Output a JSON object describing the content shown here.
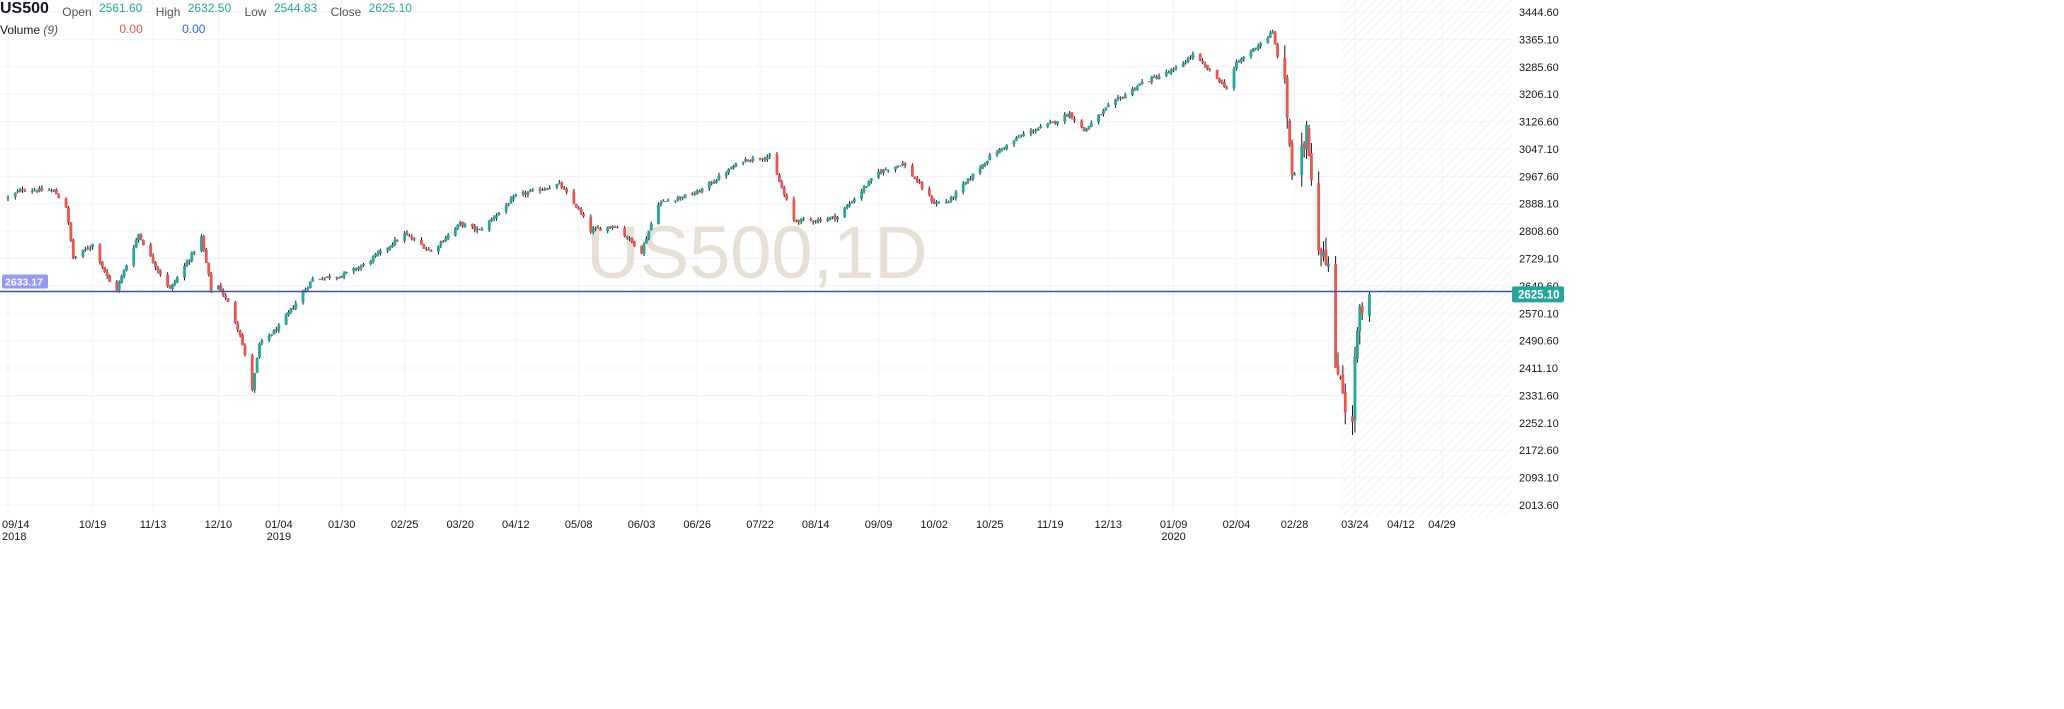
{
  "header": {
    "symbol": "US500",
    "open_label": "Open",
    "open_value": "2561.60",
    "high_label": "High",
    "high_value": "2632.50",
    "low_label": "Low",
    "low_value": "2544.83",
    "close_label": "Close",
    "close_value": "2625.10",
    "volume_label": "Volume",
    "volume_period": "(9)",
    "volume_value_1": "0.00",
    "volume_value_2": "0.00"
  },
  "watermark": "US500,1D",
  "crosshair_price": "2633.17",
  "last_price": "2625.10",
  "colors": {
    "up": "#26a69a",
    "down": "#ef5350",
    "crosshair": "#3f51b5",
    "last_price_badge": "#26a69a",
    "crosshair_badge": "#9598f5",
    "watermark": "#e6dfd4"
  },
  "chart_data": {
    "type": "candlestick",
    "ylim": [
      2013.6,
      3444.6
    ],
    "y_ticks": [
      "3444.60",
      "3365.10",
      "3285.60",
      "3206.10",
      "3126.60",
      "3047.10",
      "2967.60",
      "2888.10",
      "2808.60",
      "2729.10",
      "2649.60",
      "2570.10",
      "2490.60",
      "2411.10",
      "2331.60",
      "2252.10",
      "2172.60",
      "2093.10",
      "2013.60"
    ],
    "x_ticks": [
      {
        "label": "09/14",
        "sub": "2018"
      },
      {
        "label": "10/19",
        "sub": ""
      },
      {
        "label": "11/13",
        "sub": ""
      },
      {
        "label": "12/10",
        "sub": ""
      },
      {
        "label": "01/04",
        "sub": "2019"
      },
      {
        "label": "01/30",
        "sub": ""
      },
      {
        "label": "02/25",
        "sub": ""
      },
      {
        "label": "03/20",
        "sub": ""
      },
      {
        "label": "04/12",
        "sub": ""
      },
      {
        "label": "05/08",
        "sub": ""
      },
      {
        "label": "06/03",
        "sub": ""
      },
      {
        "label": "06/26",
        "sub": ""
      },
      {
        "label": "07/22",
        "sub": ""
      },
      {
        "label": "08/14",
        "sub": ""
      },
      {
        "label": "09/09",
        "sub": ""
      },
      {
        "label": "10/02",
        "sub": ""
      },
      {
        "label": "10/25",
        "sub": ""
      },
      {
        "label": "11/19",
        "sub": ""
      },
      {
        "label": "12/13",
        "sub": ""
      },
      {
        "label": "01/09",
        "sub": "2020"
      },
      {
        "label": "02/04",
        "sub": ""
      },
      {
        "label": "02/28",
        "sub": ""
      },
      {
        "label": "03/24",
        "sub": ""
      },
      {
        "label": "04/12",
        "sub": ""
      },
      {
        "label": "04/29",
        "sub": ""
      }
    ],
    "close_path": [
      [
        "09/14/2018",
        2905
      ],
      [
        "09/20/2018",
        2930
      ],
      [
        "10/03/2018",
        2925
      ],
      [
        "10/08/2018",
        2880
      ],
      [
        "10/11/2018",
        2730
      ],
      [
        "10/19/2018",
        2770
      ],
      [
        "10/26/2018",
        2660
      ],
      [
        "10/29/2018",
        2640
      ],
      [
        "11/07/2018",
        2800
      ],
      [
        "11/13/2018",
        2720
      ],
      [
        "11/20/2018",
        2640
      ],
      [
        "11/29/2018",
        2740
      ],
      [
        "12/03/2018",
        2790
      ],
      [
        "12/07/2018",
        2640
      ],
      [
        "12/10/2018",
        2650
      ],
      [
        "12/14/2018",
        2600
      ],
      [
        "12/19/2018",
        2510
      ],
      [
        "12/24/2018",
        2350
      ],
      [
        "12/27/2018",
        2480
      ],
      [
        "01/04/2019",
        2530
      ],
      [
        "01/18/2019",
        2670
      ],
      [
        "01/30/2019",
        2680
      ],
      [
        "02/08/2019",
        2710
      ],
      [
        "02/25/2019",
        2800
      ],
      [
        "03/08/2019",
        2750
      ],
      [
        "03/20/2019",
        2830
      ],
      [
        "03/28/2019",
        2810
      ],
      [
        "04/12/2019",
        2910
      ],
      [
        "04/30/2019",
        2945
      ],
      [
        "05/08/2019",
        2870
      ],
      [
        "05/13/2019",
        2810
      ],
      [
        "05/23/2019",
        2825
      ],
      [
        "06/03/2019",
        2750
      ],
      [
        "06/10/2019",
        2890
      ],
      [
        "06/26/2019",
        2920
      ],
      [
        "07/15/2019",
        3015
      ],
      [
        "07/26/2019",
        3025
      ],
      [
        "08/05/2019",
        2840
      ],
      [
        "08/14/2019",
        2840
      ],
      [
        "08/23/2019",
        2850
      ],
      [
        "09/09/2019",
        2980
      ],
      [
        "09/19/2019",
        3005
      ],
      [
        "10/02/2019",
        2890
      ],
      [
        "10/08/2019",
        2895
      ],
      [
        "10/25/2019",
        3025
      ],
      [
        "11/08/2019",
        3090
      ],
      [
        "11/19/2019",
        3120
      ],
      [
        "11/27/2019",
        3150
      ],
      [
        "12/03/2019",
        3100
      ],
      [
        "12/13/2019",
        3170
      ],
      [
        "12/27/2019",
        3240
      ],
      [
        "01/09/2020",
        3275
      ],
      [
        "01/17/2020",
        3320
      ],
      [
        "01/31/2020",
        3225
      ],
      [
        "02/04/2020",
        3295
      ],
      [
        "02/19/2020",
        3385
      ],
      [
        "02/20/2020",
        3350
      ],
      [
        "02/24/2020",
        3225
      ],
      [
        "02/27/2020",
        2980
      ],
      [
        "02/28/2020",
        2955
      ],
      [
        "03/03/2020",
        3060
      ],
      [
        "03/04/2020",
        3120
      ],
      [
        "03/09/2020",
        2760
      ],
      [
        "03/11/2020",
        2760
      ],
      [
        "03/13/2020",
        2710
      ],
      [
        "03/16/2020",
        2390
      ],
      [
        "03/18/2020",
        2400
      ],
      [
        "03/20/2020",
        2300
      ],
      [
        "03/23/2020",
        2240
      ],
      [
        "03/24/2020",
        2450
      ],
      [
        "03/26/2020",
        2570
      ],
      [
        "03/27/2020",
        2561.6
      ],
      [
        "03/30/2020",
        2625.1
      ]
    ],
    "last_bar": {
      "date": "03/30/2020",
      "open": 2561.6,
      "high": 2632.5,
      "low": 2544.83,
      "close": 2625.1
    },
    "grid": true,
    "legend": "top-left"
  }
}
